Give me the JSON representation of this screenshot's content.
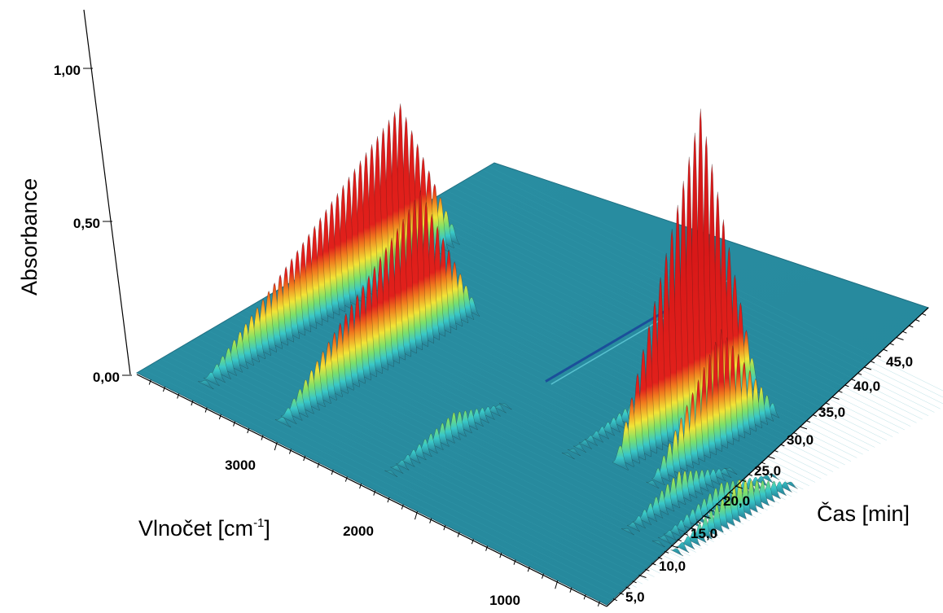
{
  "chart_data": {
    "type": "surface3d",
    "z_axis": {
      "label": "Absorbance",
      "ticks": [
        "0,00",
        "0,50",
        "1,00"
      ],
      "range": [
        0,
        1.05
      ]
    },
    "x_axis": {
      "label_prefix": "Vlnočet [cm",
      "label_sup": "-1",
      "label_suffix": "]",
      "ticks": [
        "3000",
        "2000",
        "1000"
      ],
      "range": [
        4000,
        650
      ],
      "reversed": true
    },
    "y_axis": {
      "label": "Čas [min]",
      "ticks": [
        "5,0",
        "10,0",
        "15,0",
        "20,0",
        "25,0",
        "30,0",
        "35,0",
        "40,0",
        "45,0"
      ],
      "range": [
        0,
        50
      ]
    },
    "colormap": [
      "#1e7a93",
      "#2a8fa3",
      "#39c8c8",
      "#7de06a",
      "#f2e436",
      "#f07a1e",
      "#e1201b"
    ],
    "baseline_color": "#2a8da0",
    "peaks": [
      {
        "wavenumber": 3650,
        "time_start": 2,
        "time_peak": 30,
        "absorbance": 0.55
      },
      {
        "wavenumber": 3100,
        "time_start": 2,
        "time_peak": 22,
        "absorbance": 0.5
      },
      {
        "wavenumber": 2350,
        "time_start": 2,
        "time_peak": 12,
        "absorbance": 0.08
      },
      {
        "wavenumber": 1780,
        "time_start": 15,
        "time_peak": 28,
        "absorbance": 0.06
      },
      {
        "wavenumber": 1510,
        "time_start": 18,
        "time_peak": 30,
        "absorbance": 1.02
      },
      {
        "wavenumber": 1260,
        "time_start": 18,
        "time_peak": 28,
        "absorbance": 0.38
      },
      {
        "wavenumber": 1050,
        "time_start": 10,
        "time_peak": 18,
        "absorbance": 0.1
      },
      {
        "wavenumber": 850,
        "time_start": 10,
        "time_peak": 20,
        "absorbance": 0.08
      },
      {
        "wavenumber": 720,
        "time_start": 10,
        "time_peak": 20,
        "absorbance": 0.12
      }
    ]
  }
}
